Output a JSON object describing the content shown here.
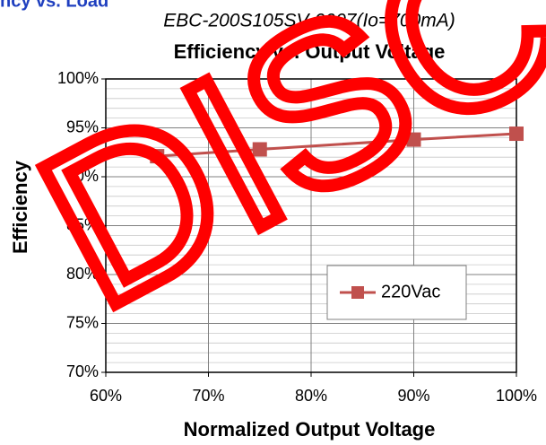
{
  "header": "Efficiency vs. Load",
  "watermark": "DISC",
  "chart_data": {
    "type": "line",
    "subtitle": "EBC-200S105SV-0007(Io=700mA)",
    "title": "Efficiency vs. Output Voltage",
    "y_label": "Efficiency",
    "x_label": "Normalized Output Voltage",
    "x": [
      65,
      75,
      90,
      100
    ],
    "series": [
      {
        "name": "220Vac",
        "color": "#c0504d",
        "values": [
          92.1,
          92.8,
          93.8,
          94.4
        ]
      }
    ],
    "xlim": [
      60,
      100
    ],
    "xticks": [
      {
        "value": 60,
        "label": "60%"
      },
      {
        "value": 70,
        "label": "70%"
      },
      {
        "value": 80,
        "label": "80%"
      },
      {
        "value": 90,
        "label": "90%"
      },
      {
        "value": 100,
        "label": "100%"
      }
    ],
    "ylim": [
      70,
      100
    ],
    "yticks": [
      {
        "value": 70,
        "label": "70%"
      },
      {
        "value": 75,
        "label": "75%"
      },
      {
        "value": 80,
        "label": "80%"
      },
      {
        "value": 85,
        "label": "85%"
      },
      {
        "value": 90,
        "label": "90%"
      },
      {
        "value": 95,
        "label": "95%"
      },
      {
        "value": 100,
        "label": "100%"
      }
    ],
    "minor_yticks": [
      71,
      72,
      73,
      74,
      76,
      77,
      78,
      79,
      81,
      82,
      83,
      84,
      86,
      87,
      88,
      89,
      91,
      92,
      93,
      94,
      96,
      97,
      98,
      99
    ],
    "grid": true,
    "legend": "right"
  }
}
